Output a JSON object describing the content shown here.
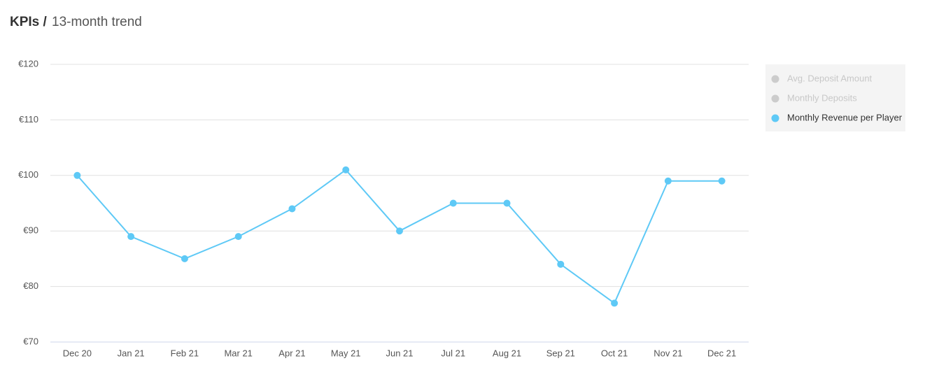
{
  "chart_data": {
    "type": "line",
    "title": "KPIs /",
    "subtitle": "13-month trend",
    "categories": [
      "Dec 20",
      "Jan 21",
      "Feb 21",
      "Mar 21",
      "Apr 21",
      "May 21",
      "Jun 21",
      "Jul 21",
      "Aug 21",
      "Sep 21",
      "Oct 21",
      "Nov 21",
      "Dec 21"
    ],
    "series": [
      {
        "name": "Avg. Deposit Amount",
        "color": "#cccccc",
        "hidden": true
      },
      {
        "name": "Monthly Deposits",
        "color": "#cccccc",
        "hidden": true
      },
      {
        "name": "Monthly Revenue per Player",
        "color": "#5ec9f6",
        "values": [
          100,
          89,
          85,
          89,
          94,
          101,
          90,
          95,
          95,
          84,
          77,
          99,
          99
        ]
      }
    ],
    "ylim": [
      70,
      120
    ],
    "yticks": [
      {
        "value": 70,
        "label": "€70"
      },
      {
        "value": 80,
        "label": "€80"
      },
      {
        "value": 90,
        "label": "€90"
      },
      {
        "value": 100,
        "label": "€100"
      },
      {
        "value": 110,
        "label": "€110"
      },
      {
        "value": 120,
        "label": "€120"
      }
    ],
    "grid": true,
    "legend": "right"
  }
}
